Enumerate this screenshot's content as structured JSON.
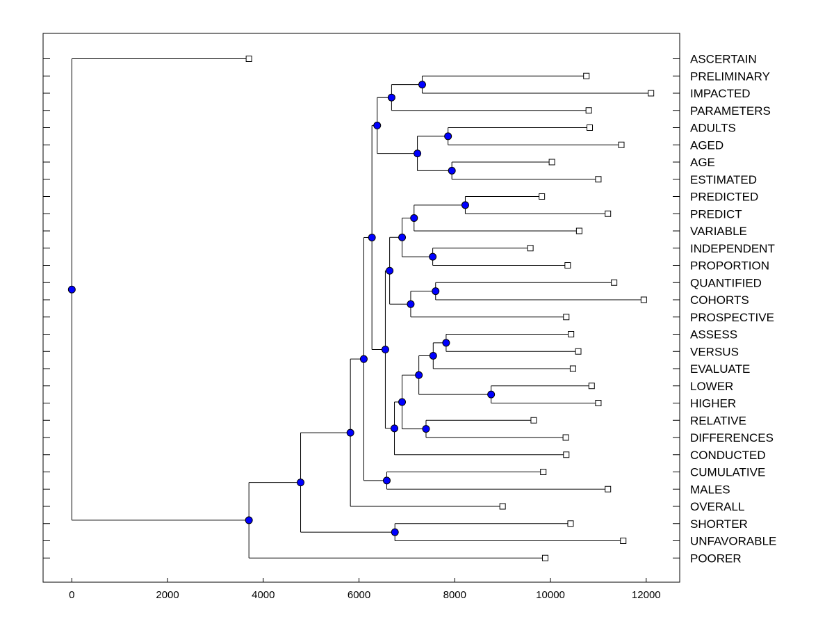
{
  "chart_data": {
    "type": "dendrogram",
    "orientation": "horizontal",
    "xlim": [
      -600,
      12700
    ],
    "x_ticks": [
      0,
      2000,
      4000,
      6000,
      8000,
      10000,
      12000
    ],
    "x_tick_labels": [
      "0",
      "2000",
      "4000",
      "6000",
      "8000",
      "10000",
      "12000"
    ],
    "colors": {
      "node_fill": "#0000ff",
      "line": "#000000",
      "leaf_fill": "#ffffff"
    },
    "leaves": [
      {
        "label": "ASCERTAIN",
        "value": 3700
      },
      {
        "label": "PRELIMINARY",
        "value": 10750
      },
      {
        "label": "IMPACTED",
        "value": 12100
      },
      {
        "label": "PARAMETERS",
        "value": 10800
      },
      {
        "label": "ADULTS",
        "value": 10820
      },
      {
        "label": "AGED",
        "value": 11480
      },
      {
        "label": "AGE",
        "value": 10030
      },
      {
        "label": "ESTIMATED",
        "value": 11000
      },
      {
        "label": "PREDICTED",
        "value": 9820
      },
      {
        "label": "PREDICT",
        "value": 11200
      },
      {
        "label": "VARIABLE",
        "value": 10600
      },
      {
        "label": "INDEPENDENT",
        "value": 9580
      },
      {
        "label": "PROPORTION",
        "value": 10360
      },
      {
        "label": "QUANTIFIED",
        "value": 11330
      },
      {
        "label": "COHORTS",
        "value": 11950
      },
      {
        "label": "PROSPECTIVE",
        "value": 10330
      },
      {
        "label": "ASSESS",
        "value": 10430
      },
      {
        "label": "VERSUS",
        "value": 10580
      },
      {
        "label": "EVALUATE",
        "value": 10470
      },
      {
        "label": "LOWER",
        "value": 10860
      },
      {
        "label": "HIGHER",
        "value": 11000
      },
      {
        "label": "RELATIVE",
        "value": 9650
      },
      {
        "label": "DIFFERENCES",
        "value": 10320
      },
      {
        "label": "CONDUCTED",
        "value": 10330
      },
      {
        "label": "CUMULATIVE",
        "value": 9850
      },
      {
        "label": "MALES",
        "value": 11200
      },
      {
        "label": "OVERALL",
        "value": 9000
      },
      {
        "label": "SHORTER",
        "value": 10420
      },
      {
        "label": "UNFAVORABLE",
        "value": 11520
      },
      {
        "label": "POORER",
        "value": 9890
      }
    ],
    "merges": [
      {
        "id": "n1",
        "value": 7320,
        "children": [
          1,
          2
        ]
      },
      {
        "id": "n2",
        "value": 6680,
        "children": [
          "n1",
          3
        ]
      },
      {
        "id": "n3",
        "value": 7860,
        "children": [
          4,
          5
        ]
      },
      {
        "id": "n4",
        "value": 7940,
        "children": [
          6,
          7
        ]
      },
      {
        "id": "n5",
        "value": 7220,
        "children": [
          "n3",
          "n4"
        ]
      },
      {
        "id": "n6",
        "value": 6380,
        "children": [
          "n2",
          "n5"
        ]
      },
      {
        "id": "n7",
        "value": 8220,
        "children": [
          8,
          9
        ]
      },
      {
        "id": "n8",
        "value": 7150,
        "children": [
          "n7",
          10
        ]
      },
      {
        "id": "n9",
        "value": 7540,
        "children": [
          11,
          12
        ]
      },
      {
        "id": "n10",
        "value": 6900,
        "children": [
          "n8",
          "n9"
        ]
      },
      {
        "id": "n11",
        "value": 7600,
        "children": [
          13,
          14
        ]
      },
      {
        "id": "n12",
        "value": 7080,
        "children": [
          "n11",
          15
        ]
      },
      {
        "id": "n13",
        "value": 6640,
        "children": [
          "n10",
          "n12"
        ]
      },
      {
        "id": "n14",
        "value": 7820,
        "children": [
          16,
          17
        ]
      },
      {
        "id": "n15",
        "value": 7550,
        "children": [
          "n14",
          18
        ]
      },
      {
        "id": "n16",
        "value": 8760,
        "children": [
          19,
          20
        ]
      },
      {
        "id": "n17",
        "value": 7250,
        "children": [
          "n15",
          "n16"
        ]
      },
      {
        "id": "n18",
        "value": 7400,
        "children": [
          21,
          22
        ]
      },
      {
        "id": "n19",
        "value": 6900,
        "children": [
          "n17",
          "n18"
        ]
      },
      {
        "id": "n20",
        "value": 6740,
        "children": [
          "n19",
          23
        ]
      },
      {
        "id": "n21",
        "value": 6550,
        "children": [
          "n13",
          "n20"
        ]
      },
      {
        "id": "n22",
        "value": 6270,
        "children": [
          "n6",
          "n21"
        ]
      },
      {
        "id": "n23",
        "value": 6580,
        "children": [
          24,
          25
        ]
      },
      {
        "id": "n24",
        "value": 6100,
        "children": [
          "n22",
          "n23"
        ]
      },
      {
        "id": "n25",
        "value": 5820,
        "children": [
          "n24",
          26
        ]
      },
      {
        "id": "n26",
        "value": 6750,
        "children": [
          27,
          28
        ]
      },
      {
        "id": "n27",
        "value": 4780,
        "children": [
          "n25",
          "n26"
        ]
      },
      {
        "id": "n28",
        "value": 3700,
        "children": [
          "n27",
          29
        ]
      },
      {
        "id": "n29",
        "value": 0,
        "children": [
          0,
          "n28"
        ]
      }
    ],
    "title": "",
    "xlabel": "",
    "ylabel": ""
  }
}
